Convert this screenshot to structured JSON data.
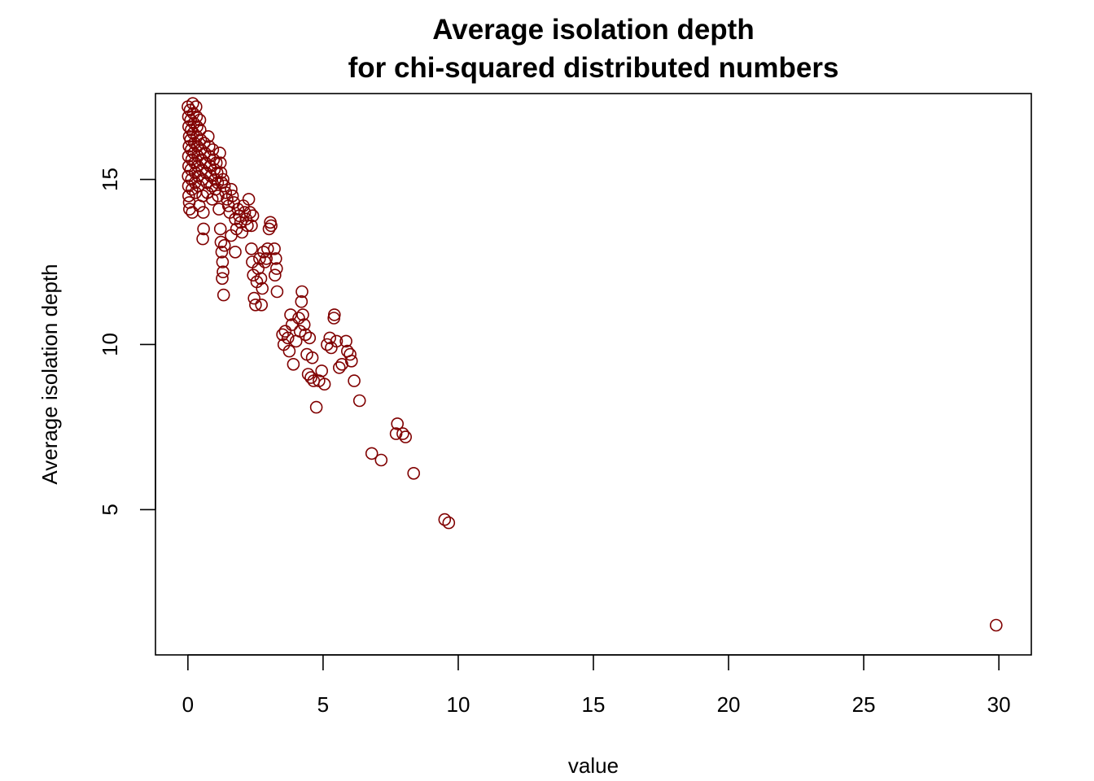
{
  "chart_data": {
    "type": "scatter",
    "title": "Average isolation depth",
    "subtitle": "for chi-squared distributed numbers",
    "xlabel": "value",
    "ylabel": "Average isolation depth",
    "xlim": [
      -1.2,
      31.2
    ],
    "ylim": [
      0.6,
      17.6
    ],
    "x_ticks": [
      0,
      5,
      10,
      15,
      20,
      25,
      30
    ],
    "y_ticks": [
      5,
      10,
      15
    ],
    "grid": false,
    "legend": "none",
    "marker": "open-circle",
    "point_color": "#800000",
    "points_note": "dense cluster near x=0..2 approximated",
    "points": [
      [
        0.0,
        17.2
      ],
      [
        0.02,
        16.9
      ],
      [
        0.03,
        16.6
      ],
      [
        0.05,
        16.3
      ],
      [
        0.04,
        16.0
      ],
      [
        0.02,
        15.7
      ],
      [
        0.03,
        15.4
      ],
      [
        0.01,
        15.1
      ],
      [
        0.02,
        14.8
      ],
      [
        0.03,
        14.5
      ],
      [
        0.05,
        14.3
      ],
      [
        0.06,
        14.1
      ],
      [
        0.08,
        17.1
      ],
      [
        0.1,
        16.8
      ],
      [
        0.12,
        16.5
      ],
      [
        0.1,
        16.2
      ],
      [
        0.12,
        15.9
      ],
      [
        0.14,
        15.6
      ],
      [
        0.11,
        15.3
      ],
      [
        0.13,
        15.0
      ],
      [
        0.15,
        14.7
      ],
      [
        0.16,
        14.0
      ],
      [
        0.18,
        17.3
      ],
      [
        0.2,
        17.0
      ],
      [
        0.22,
        16.7
      ],
      [
        0.2,
        16.4
      ],
      [
        0.24,
        16.1
      ],
      [
        0.22,
        15.8
      ],
      [
        0.25,
        15.5
      ],
      [
        0.27,
        15.2
      ],
      [
        0.26,
        14.9
      ],
      [
        0.28,
        14.6
      ],
      [
        0.3,
        17.2
      ],
      [
        0.32,
        16.9
      ],
      [
        0.34,
        16.6
      ],
      [
        0.33,
        16.3
      ],
      [
        0.35,
        16.0
      ],
      [
        0.37,
        15.7
      ],
      [
        0.36,
        15.4
      ],
      [
        0.38,
        15.1
      ],
      [
        0.4,
        14.8
      ],
      [
        0.42,
        14.2
      ],
      [
        0.44,
        16.8
      ],
      [
        0.45,
        16.5
      ],
      [
        0.47,
        16.2
      ],
      [
        0.48,
        15.9
      ],
      [
        0.5,
        15.6
      ],
      [
        0.52,
        15.3
      ],
      [
        0.54,
        15.0
      ],
      [
        0.55,
        14.5
      ],
      [
        0.57,
        14.0
      ],
      [
        0.58,
        13.5
      ],
      [
        0.55,
        13.2
      ],
      [
        0.6,
        16.1
      ],
      [
        0.63,
        15.8
      ],
      [
        0.65,
        15.5
      ],
      [
        0.67,
        15.2
      ],
      [
        0.7,
        14.9
      ],
      [
        0.72,
        14.6
      ],
      [
        0.75,
        16.3
      ],
      [
        0.78,
        16.0
      ],
      [
        0.8,
        15.7
      ],
      [
        0.82,
        15.4
      ],
      [
        0.85,
        15.1
      ],
      [
        0.88,
        14.8
      ],
      [
        0.9,
        14.4
      ],
      [
        0.92,
        15.9
      ],
      [
        0.95,
        15.6
      ],
      [
        0.98,
        15.3
      ],
      [
        1.0,
        15.0
      ],
      [
        1.02,
        14.7
      ],
      [
        1.05,
        15.5
      ],
      [
        1.08,
        15.2
      ],
      [
        1.1,
        14.9
      ],
      [
        1.12,
        14.5
      ],
      [
        1.15,
        14.1
      ],
      [
        1.18,
        15.8
      ],
      [
        1.2,
        15.5
      ],
      [
        1.22,
        15.2
      ],
      [
        1.25,
        14.9
      ],
      [
        1.2,
        13.5
      ],
      [
        1.22,
        13.1
      ],
      [
        1.25,
        12.8
      ],
      [
        1.28,
        12.5
      ],
      [
        1.3,
        12.2
      ],
      [
        1.32,
        11.5
      ],
      [
        1.27,
        12.0
      ],
      [
        1.35,
        13.0
      ],
      [
        1.3,
        15.0
      ],
      [
        1.35,
        14.8
      ],
      [
        1.4,
        14.6
      ],
      [
        1.45,
        14.4
      ],
      [
        1.5,
        14.2
      ],
      [
        1.55,
        14.0
      ],
      [
        1.6,
        14.7
      ],
      [
        1.65,
        14.5
      ],
      [
        1.7,
        14.3
      ],
      [
        1.75,
        13.8
      ],
      [
        1.8,
        13.5
      ],
      [
        1.85,
        14.1
      ],
      [
        1.9,
        13.9
      ],
      [
        1.95,
        13.7
      ],
      [
        2.0,
        13.4
      ],
      [
        2.05,
        14.2
      ],
      [
        2.1,
        14.0
      ],
      [
        2.15,
        13.8
      ],
      [
        2.2,
        13.6
      ],
      [
        2.25,
        14.4
      ],
      [
        2.3,
        14.0
      ],
      [
        2.35,
        13.6
      ],
      [
        2.4,
        13.9
      ],
      [
        1.75,
        12.8
      ],
      [
        1.6,
        13.3
      ],
      [
        2.35,
        12.9
      ],
      [
        2.38,
        12.5
      ],
      [
        2.42,
        12.1
      ],
      [
        2.45,
        11.4
      ],
      [
        2.5,
        11.2
      ],
      [
        2.55,
        11.9
      ],
      [
        2.6,
        12.3
      ],
      [
        2.65,
        12.6
      ],
      [
        2.7,
        12.0
      ],
      [
        2.75,
        11.7
      ],
      [
        2.8,
        12.8
      ],
      [
        2.85,
        12.5
      ],
      [
        2.72,
        11.2
      ],
      [
        2.9,
        12.6
      ],
      [
        2.95,
        12.9
      ],
      [
        3.0,
        13.5
      ],
      [
        3.05,
        13.7
      ],
      [
        3.08,
        13.6
      ],
      [
        3.2,
        12.9
      ],
      [
        3.25,
        12.6
      ],
      [
        3.28,
        12.3
      ],
      [
        3.22,
        12.1
      ],
      [
        3.3,
        11.6
      ],
      [
        3.5,
        10.3
      ],
      [
        3.55,
        10.0
      ],
      [
        3.6,
        10.4
      ],
      [
        3.7,
        10.2
      ],
      [
        3.75,
        9.8
      ],
      [
        3.8,
        10.9
      ],
      [
        3.85,
        10.6
      ],
      [
        3.9,
        9.4
      ],
      [
        4.0,
        10.1
      ],
      [
        4.1,
        10.8
      ],
      [
        4.15,
        10.4
      ],
      [
        4.2,
        11.3
      ],
      [
        4.22,
        11.6
      ],
      [
        4.25,
        10.9
      ],
      [
        4.3,
        10.6
      ],
      [
        4.35,
        10.3
      ],
      [
        4.4,
        9.7
      ],
      [
        4.45,
        9.1
      ],
      [
        4.5,
        10.2
      ],
      [
        4.55,
        9.0
      ],
      [
        4.6,
        9.6
      ],
      [
        4.65,
        8.9
      ],
      [
        4.75,
        8.1
      ],
      [
        4.85,
        8.9
      ],
      [
        4.95,
        9.2
      ],
      [
        5.05,
        8.8
      ],
      [
        5.15,
        10.0
      ],
      [
        5.25,
        10.2
      ],
      [
        5.3,
        9.9
      ],
      [
        5.4,
        10.8
      ],
      [
        5.42,
        10.9
      ],
      [
        5.5,
        10.1
      ],
      [
        5.6,
        9.3
      ],
      [
        5.7,
        9.4
      ],
      [
        5.85,
        10.1
      ],
      [
        5.9,
        9.8
      ],
      [
        6.0,
        9.7
      ],
      [
        6.05,
        9.5
      ],
      [
        6.15,
        8.9
      ],
      [
        6.35,
        8.3
      ],
      [
        6.8,
        6.7
      ],
      [
        7.15,
        6.5
      ],
      [
        7.7,
        7.3
      ],
      [
        7.75,
        7.6
      ],
      [
        7.95,
        7.3
      ],
      [
        8.05,
        7.2
      ],
      [
        8.35,
        6.1
      ],
      [
        9.5,
        4.7
      ],
      [
        9.65,
        4.6
      ],
      [
        29.9,
        1.5
      ]
    ]
  }
}
